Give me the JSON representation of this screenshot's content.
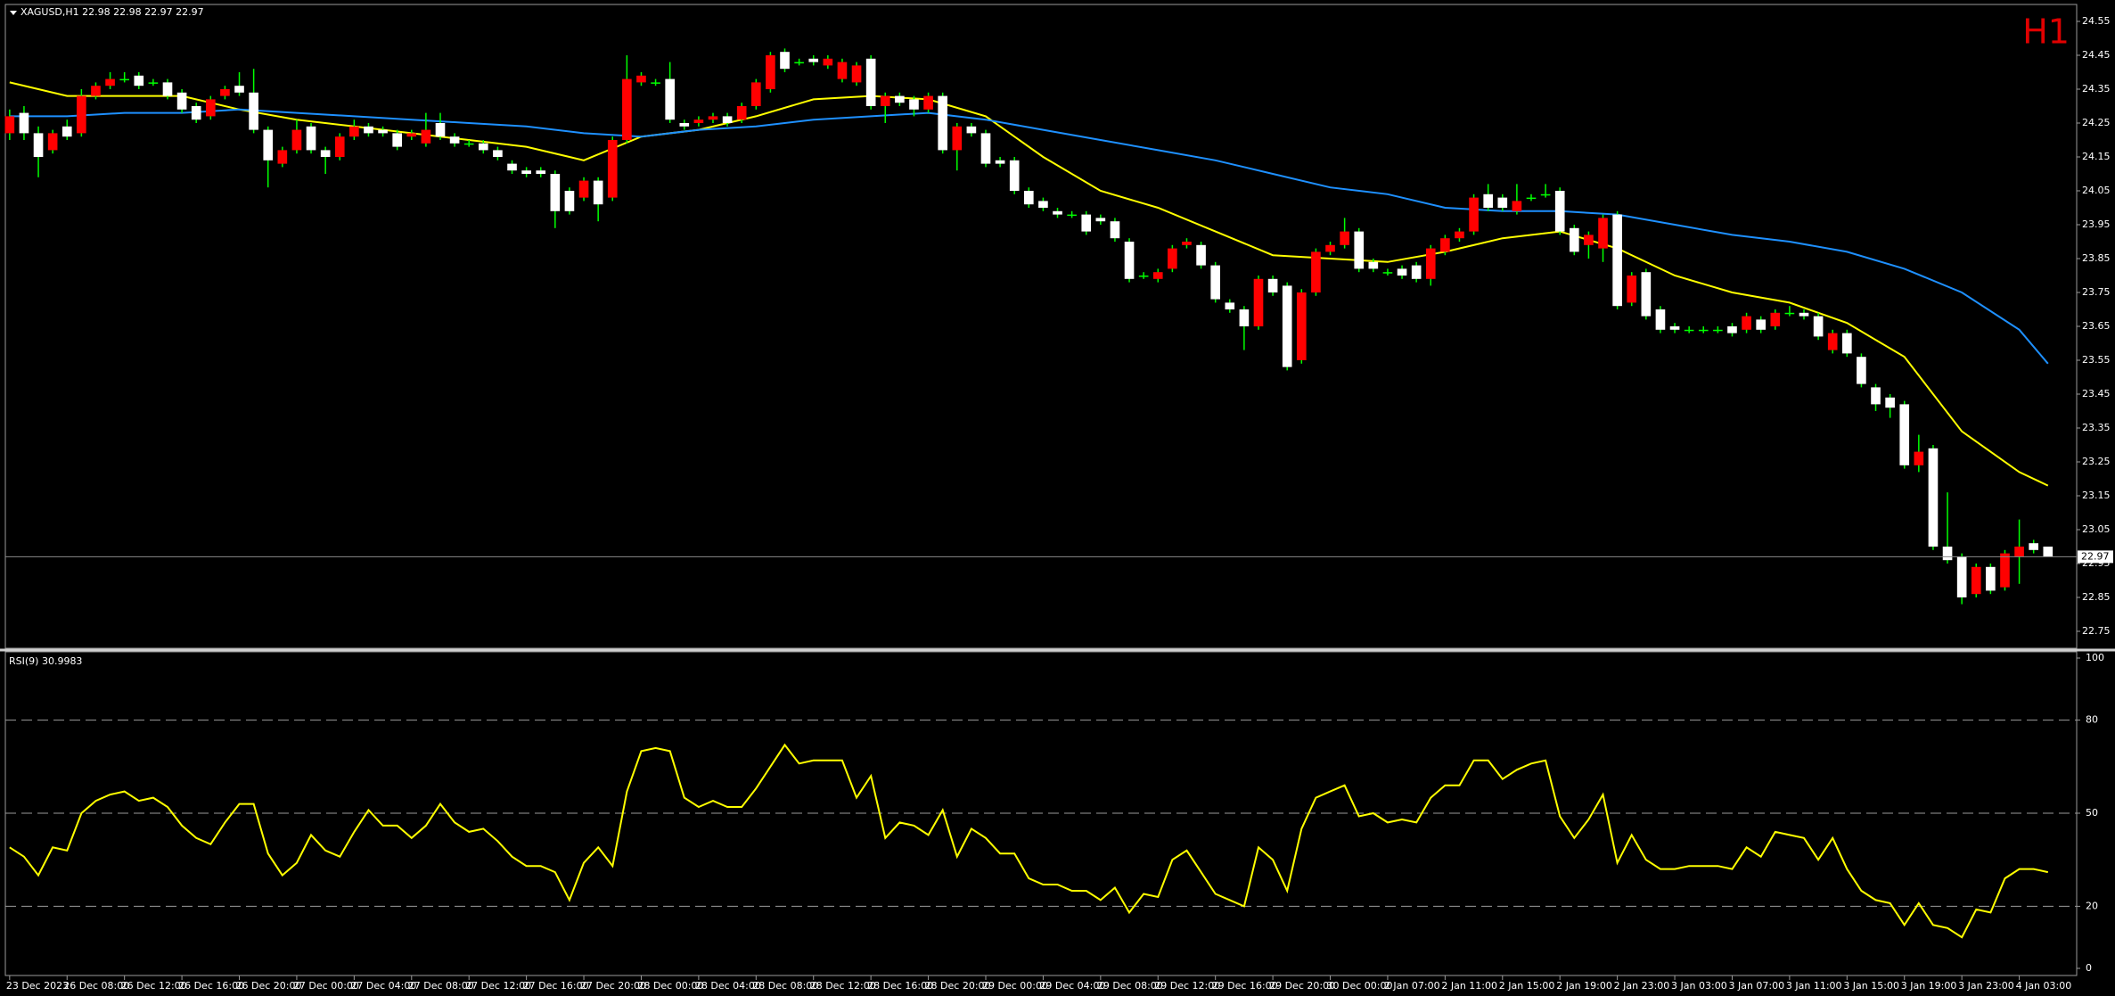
{
  "chart_data": [
    {
      "type": "candlestick",
      "title": "XAGUSD,H1 22.98 22.98 22.97 22.97",
      "timeframe_label": "H1",
      "xlim": [
        -0.3,
        144
      ],
      "xticks": [
        {
          "value": 0,
          "label": "23 Dec 2023"
        },
        {
          "value": 4,
          "label": "26 Dec 08:00"
        },
        {
          "value": 8,
          "label": "26 Dec 12:00"
        },
        {
          "value": 12,
          "label": "26 Dec 16:00"
        },
        {
          "value": 16,
          "label": "26 Dec 20:00"
        },
        {
          "value": 20,
          "label": "27 Dec 00:00"
        },
        {
          "value": 24,
          "label": "27 Dec 04:00"
        },
        {
          "value": 28,
          "label": "27 Dec 08:00"
        },
        {
          "value": 32,
          "label": "27 Dec 12:00"
        },
        {
          "value": 36,
          "label": "27 Dec 16:00"
        },
        {
          "value": 40,
          "label": "27 Dec 20:00"
        },
        {
          "value": 44,
          "label": "28 Dec 00:00"
        },
        {
          "value": 48,
          "label": "28 Dec 04:00"
        },
        {
          "value": 52,
          "label": "28 Dec 08:00"
        },
        {
          "value": 56,
          "label": "28 Dec 12:00"
        },
        {
          "value": 60,
          "label": "28 Dec 16:00"
        },
        {
          "value": 64,
          "label": "28 Dec 20:00"
        },
        {
          "value": 68,
          "label": "29 Dec 00:00"
        },
        {
          "value": 72,
          "label": "29 Dec 04:00"
        },
        {
          "value": 76,
          "label": "29 Dec 08:00"
        },
        {
          "value": 80,
          "label": "29 Dec 12:00"
        },
        {
          "value": 84,
          "label": "29 Dec 16:00"
        },
        {
          "value": 88,
          "label": "29 Dec 20:00"
        },
        {
          "value": 92,
          "label": "30 Dec 00:00"
        },
        {
          "value": 96,
          "label": "2 Jan 07:00"
        },
        {
          "value": 100,
          "label": "2 Jan 11:00"
        },
        {
          "value": 104,
          "label": "2 Jan 15:00"
        },
        {
          "value": 108,
          "label": "2 Jan 19:00"
        },
        {
          "value": 112,
          "label": "2 Jan 23:00"
        },
        {
          "value": 116,
          "label": "3 Jan 03:00"
        },
        {
          "value": 120,
          "label": "3 Jan 07:00"
        },
        {
          "value": 124,
          "label": "3 Jan 11:00"
        },
        {
          "value": 128,
          "label": "3 Jan 15:00"
        },
        {
          "value": 132,
          "label": "3 Jan 19:00"
        },
        {
          "value": 136,
          "label": "3 Jan 23:00"
        },
        {
          "value": 140,
          "label": "4 Jan 03:00"
        }
      ],
      "ylim": [
        22.7,
        24.6
      ],
      "yticks": [
        24.55,
        24.45,
        24.35,
        24.25,
        24.15,
        24.05,
        23.95,
        23.85,
        23.75,
        23.65,
        23.55,
        23.45,
        23.35,
        23.25,
        23.15,
        23.05,
        22.95,
        22.85,
        22.75
      ],
      "last_price": 22.97,
      "bull_color": "#ff0000",
      "bear_color": "#ffffff",
      "wick_color": "#00ff00",
      "candles": {
        "open": [
          24.22,
          24.28,
          24.22,
          24.17,
          24.24,
          24.22,
          24.33,
          24.36,
          24.38,
          24.39,
          24.37,
          24.37,
          24.34,
          24.3,
          24.27,
          24.33,
          24.36,
          24.34,
          24.23,
          24.13,
          24.17,
          24.24,
          24.17,
          24.15,
          24.21,
          24.24,
          24.23,
          24.22,
          24.21,
          24.19,
          24.25,
          24.21,
          24.19,
          24.19,
          24.17,
          24.13,
          24.11,
          24.11,
          24.1,
          24.05,
          24.03,
          24.08,
          24.03,
          24.2,
          24.37,
          24.37,
          24.38,
          24.25,
          24.25,
          24.26,
          24.27,
          24.26,
          24.3,
          24.35,
          24.46,
          24.43,
          24.44,
          24.42,
          24.38,
          24.37,
          24.44,
          24.3,
          24.33,
          24.32,
          24.29,
          24.33,
          24.17,
          24.24,
          24.22,
          24.14,
          24.14,
          24.05,
          24.02,
          23.99,
          23.98,
          23.98,
          23.97,
          23.96,
          23.9,
          23.8,
          23.79,
          23.82,
          23.89,
          23.89,
          23.83,
          23.72,
          23.7,
          23.65,
          23.79,
          23.77,
          23.55,
          23.75,
          23.87,
          23.89,
          23.93,
          23.84,
          23.81,
          23.82,
          23.83,
          23.79,
          23.87,
          23.91,
          23.93,
          24.04,
          24.03,
          23.99,
          24.03,
          24.04,
          24.05,
          23.94,
          23.89,
          23.88,
          23.98,
          23.72,
          23.81,
          23.7,
          23.65,
          23.64,
          23.64,
          23.64,
          23.65,
          23.64,
          23.67,
          23.65,
          23.69,
          23.69,
          23.68,
          23.58,
          23.63,
          23.56,
          23.47,
          23.44,
          23.42,
          23.24,
          23.29,
          23.0,
          22.97,
          22.86,
          22.94,
          22.88,
          22.97,
          23.01,
          23.0
        ],
        "high": [
          24.29,
          24.3,
          24.24,
          24.23,
          24.26,
          24.35,
          24.37,
          24.4,
          24.4,
          24.4,
          24.38,
          24.38,
          24.35,
          24.31,
          24.33,
          24.36,
          24.4,
          24.41,
          24.24,
          24.18,
          24.26,
          24.25,
          24.18,
          24.22,
          24.26,
          24.25,
          24.24,
          24.23,
          24.23,
          24.28,
          24.28,
          24.22,
          24.2,
          24.2,
          24.18,
          24.14,
          24.12,
          24.12,
          24.11,
          24.06,
          24.09,
          24.09,
          24.21,
          24.45,
          24.4,
          24.38,
          24.43,
          24.26,
          24.27,
          24.28,
          24.28,
          24.31,
          24.38,
          24.46,
          24.47,
          24.44,
          24.45,
          24.45,
          24.44,
          24.43,
          24.45,
          24.34,
          24.34,
          24.33,
          24.34,
          24.34,
          24.25,
          24.25,
          24.23,
          24.15,
          24.15,
          24.06,
          24.03,
          24.0,
          23.99,
          23.99,
          23.98,
          23.97,
          23.91,
          23.81,
          23.82,
          23.89,
          23.91,
          23.9,
          23.84,
          23.73,
          23.71,
          23.8,
          23.8,
          23.78,
          23.76,
          23.88,
          23.9,
          23.97,
          23.94,
          23.85,
          23.82,
          23.83,
          23.84,
          23.89,
          23.92,
          23.94,
          24.04,
          24.07,
          24.04,
          24.07,
          24.04,
          24.07,
          24.06,
          23.95,
          23.93,
          23.98,
          23.99,
          23.81,
          23.82,
          23.71,
          23.66,
          23.65,
          23.65,
          23.65,
          23.66,
          23.69,
          23.68,
          23.7,
          23.71,
          23.7,
          23.69,
          23.64,
          23.64,
          23.57,
          23.48,
          23.45,
          23.43,
          23.33,
          23.3,
          23.16,
          22.98,
          22.95,
          22.95,
          22.99,
          23.08,
          23.02,
          23.0
        ],
        "low": [
          24.2,
          24.2,
          24.09,
          24.16,
          24.2,
          24.21,
          24.32,
          24.35,
          24.37,
          24.35,
          24.36,
          24.32,
          24.28,
          24.25,
          24.26,
          24.32,
          24.33,
          24.22,
          24.06,
          24.12,
          24.16,
          24.16,
          24.1,
          24.14,
          24.2,
          24.21,
          24.21,
          24.17,
          24.2,
          24.18,
          24.2,
          24.18,
          24.18,
          24.16,
          24.14,
          24.1,
          24.09,
          24.09,
          23.94,
          23.98,
          24.02,
          23.96,
          24.02,
          24.19,
          24.36,
          24.36,
          24.25,
          24.23,
          24.24,
          24.25,
          24.24,
          24.25,
          24.29,
          24.34,
          24.4,
          24.42,
          24.42,
          24.41,
          24.37,
          24.36,
          24.29,
          24.25,
          24.3,
          24.27,
          24.28,
          24.16,
          24.11,
          24.21,
          24.12,
          24.12,
          24.04,
          24.0,
          23.99,
          23.97,
          23.97,
          23.92,
          23.95,
          23.9,
          23.78,
          23.79,
          23.78,
          23.81,
          23.88,
          23.82,
          23.72,
          23.69,
          23.58,
          23.64,
          23.74,
          23.52,
          23.54,
          23.74,
          23.86,
          23.88,
          23.81,
          23.81,
          23.8,
          23.79,
          23.78,
          23.77,
          23.86,
          23.9,
          23.92,
          23.99,
          23.99,
          23.98,
          24.02,
          24.03,
          23.92,
          23.86,
          23.85,
          23.84,
          23.7,
          23.71,
          23.67,
          23.63,
          23.63,
          23.63,
          23.63,
          23.63,
          23.62,
          23.63,
          23.63,
          23.64,
          23.68,
          23.67,
          23.61,
          23.57,
          23.56,
          23.47,
          23.4,
          23.38,
          23.23,
          23.22,
          22.99,
          22.95,
          22.83,
          22.85,
          22.86,
          22.87,
          22.89,
          22.98,
          22.97
        ],
        "close": [
          24.27,
          24.22,
          24.15,
          24.22,
          24.21,
          24.33,
          24.36,
          24.38,
          24.38,
          24.36,
          24.37,
          24.33,
          24.29,
          24.26,
          24.32,
          24.35,
          24.34,
          24.23,
          24.14,
          24.17,
          24.23,
          24.17,
          24.15,
          24.21,
          24.24,
          24.22,
          24.22,
          24.18,
          24.22,
          24.23,
          24.21,
          24.19,
          24.19,
          24.17,
          24.15,
          24.11,
          24.1,
          24.1,
          23.99,
          23.99,
          24.08,
          24.01,
          24.2,
          24.38,
          24.39,
          24.37,
          24.26,
          24.24,
          24.26,
          24.27,
          24.25,
          24.3,
          24.37,
          24.45,
          24.41,
          24.43,
          24.43,
          24.44,
          24.43,
          24.42,
          24.3,
          24.33,
          24.31,
          24.29,
          24.33,
          24.17,
          24.24,
          24.22,
          24.13,
          24.13,
          24.05,
          24.01,
          24.0,
          23.98,
          23.98,
          23.93,
          23.96,
          23.91,
          23.79,
          23.8,
          23.81,
          23.88,
          23.9,
          23.83,
          23.73,
          23.7,
          23.65,
          23.79,
          23.75,
          23.53,
          23.75,
          23.87,
          23.89,
          23.93,
          23.82,
          23.82,
          23.81,
          23.8,
          23.79,
          23.88,
          23.91,
          23.93,
          24.03,
          24.0,
          24.0,
          24.02,
          24.03,
          24.04,
          23.93,
          23.87,
          23.92,
          23.97,
          23.71,
          23.8,
          23.68,
          23.64,
          23.64,
          23.64,
          23.64,
          23.64,
          23.63,
          23.68,
          23.64,
          23.69,
          23.69,
          23.68,
          23.62,
          23.63,
          23.57,
          23.48,
          23.42,
          23.41,
          23.24,
          23.28,
          23.0,
          22.96,
          22.85,
          22.94,
          22.87,
          22.98,
          23.0,
          22.99,
          22.97
        ]
      },
      "lines": [
        {
          "color": "#ffff00",
          "x": [
            0,
            4,
            8,
            12,
            16,
            20,
            24,
            28,
            32,
            36,
            40,
            44,
            48,
            52,
            56,
            60,
            64,
            68,
            72,
            76,
            80,
            84,
            88,
            92,
            96,
            100,
            104,
            108,
            112,
            116,
            120,
            124,
            128,
            132,
            136,
            140,
            142
          ],
          "values": [
            24.37,
            24.33,
            24.33,
            24.33,
            24.29,
            24.26,
            24.24,
            24.22,
            24.2,
            24.18,
            24.14,
            24.21,
            24.23,
            24.27,
            24.32,
            24.33,
            24.32,
            24.27,
            24.15,
            24.05,
            24.0,
            23.93,
            23.86,
            23.85,
            23.84,
            23.87,
            23.91,
            23.93,
            23.88,
            23.8,
            23.75,
            23.72,
            23.66,
            23.56,
            23.34,
            23.22,
            23.18
          ]
        },
        {
          "color": "#1e90ff",
          "x": [
            0,
            4,
            8,
            12,
            16,
            20,
            24,
            28,
            32,
            36,
            40,
            44,
            48,
            52,
            56,
            60,
            64,
            68,
            72,
            76,
            80,
            84,
            88,
            92,
            96,
            100,
            104,
            108,
            112,
            116,
            120,
            124,
            128,
            132,
            136,
            140,
            142
          ],
          "values": [
            24.27,
            24.27,
            24.28,
            24.28,
            24.29,
            24.28,
            24.27,
            24.26,
            24.25,
            24.24,
            24.22,
            24.21,
            24.23,
            24.24,
            24.26,
            24.27,
            24.28,
            24.26,
            24.23,
            24.2,
            24.17,
            24.14,
            24.1,
            24.06,
            24.04,
            24.0,
            23.99,
            23.99,
            23.98,
            23.95,
            23.92,
            23.9,
            23.87,
            23.82,
            23.75,
            23.64,
            23.54
          ]
        }
      ]
    },
    {
      "type": "line",
      "title": "RSI(9) 30.9983",
      "ylim": [
        0,
        100
      ],
      "yticks": [
        100,
        80,
        50,
        20,
        0
      ],
      "levels": [
        80,
        50,
        20
      ],
      "series": [
        {
          "color": "#ffff00",
          "values": [
            39,
            36,
            30,
            39,
            38,
            50,
            54,
            56,
            57,
            54,
            55,
            52,
            46,
            42,
            40,
            47,
            53,
            53,
            37,
            30,
            34,
            43,
            38,
            36,
            44,
            51,
            46,
            46,
            42,
            46,
            53,
            47,
            44,
            45,
            41,
            36,
            33,
            33,
            31,
            22,
            34,
            39,
            33,
            57,
            70,
            71,
            70,
            55,
            52,
            54,
            52,
            52,
            58,
            65,
            72,
            66,
            67,
            67,
            67,
            55,
            62,
            42,
            47,
            46,
            43,
            51,
            36,
            45,
            42,
            37,
            37,
            29,
            27,
            27,
            25,
            25,
            22,
            26,
            18,
            24,
            23,
            35,
            38,
            31,
            24,
            22,
            20,
            39,
            35,
            25,
            45,
            55,
            57,
            59,
            49,
            50,
            47,
            48,
            47,
            55,
            59,
            59,
            67,
            67,
            61,
            64,
            66,
            67,
            49,
            42,
            48,
            56,
            34,
            43,
            35,
            32,
            32,
            33,
            33,
            33,
            32,
            39,
            36,
            44,
            43,
            42,
            35,
            42,
            32,
            25,
            22,
            21,
            14,
            21,
            14,
            13,
            10,
            19,
            18,
            29,
            32,
            32,
            31
          ]
        }
      ]
    }
  ]
}
